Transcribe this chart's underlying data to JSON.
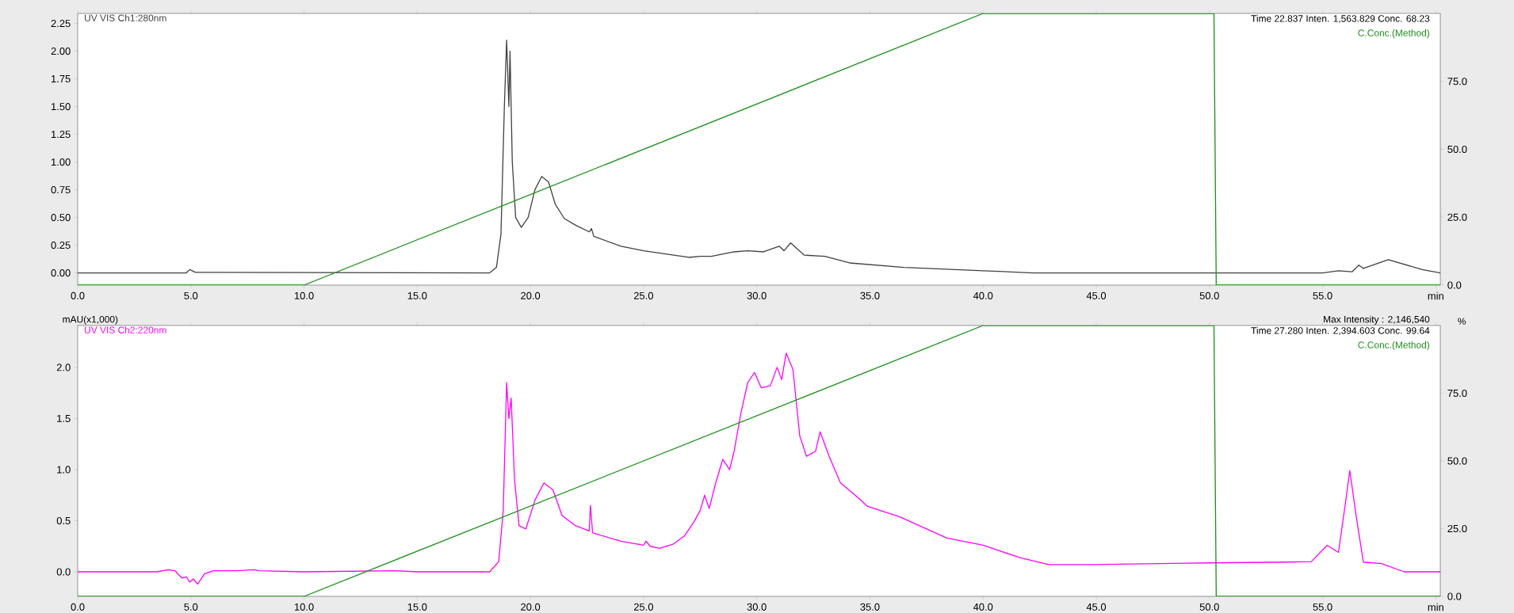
{
  "chart_data": [
    {
      "type": "line",
      "xlim": [
        0,
        60.2
      ],
      "ylim": [
        -0.11,
        2.34
      ],
      "y2lim": [
        0,
        100
      ],
      "xticks": [
        {
          "value": 0,
          "label": "0.0"
        },
        {
          "value": 5,
          "label": "5.0"
        },
        {
          "value": 10,
          "label": "10.0"
        },
        {
          "value": 15,
          "label": "15.0"
        },
        {
          "value": 20,
          "label": "20.0"
        },
        {
          "value": 25,
          "label": "25.0"
        },
        {
          "value": 30,
          "label": "30.0"
        },
        {
          "value": 35,
          "label": "35.0"
        },
        {
          "value": 40,
          "label": "40.0"
        },
        {
          "value": 45,
          "label": "45.0"
        },
        {
          "value": 50,
          "label": "50.0"
        },
        {
          "value": 55,
          "label": "55.0"
        },
        {
          "value": 60,
          "label": "min"
        }
      ],
      "yticks": [
        {
          "value": 0,
          "label": "0.00"
        },
        {
          "value": 0.25,
          "label": "0.25"
        },
        {
          "value": 0.5,
          "label": "0.50"
        },
        {
          "value": 0.75,
          "label": "0.75"
        },
        {
          "value": 1,
          "label": "1.00"
        },
        {
          "value": 1.25,
          "label": "1.25"
        },
        {
          "value": 1.5,
          "label": "1.50"
        },
        {
          "value": 1.75,
          "label": "1.75"
        },
        {
          "value": 2,
          "label": "2.00"
        },
        {
          "value": 2.25,
          "label": "2.25"
        }
      ],
      "y2ticks": [
        {
          "value": 0,
          "label": "0.0"
        },
        {
          "value": 25,
          "label": "25.0"
        },
        {
          "value": 50,
          "label": "50.0"
        },
        {
          "value": 75,
          "label": "75.0"
        }
      ],
      "annotations": [
        "Time 22.837 Inten. 1,563.829 Conc. 68.23"
      ],
      "series": [
        {
          "name": "UV VIS Ch1:280nm",
          "color": "#404040",
          "x": [
            0,
            4.8,
            4.95,
            5.2,
            18.2,
            18.5,
            18.7,
            18.85,
            18.95,
            19.05,
            19.1,
            19.2,
            19.35,
            19.6,
            19.9,
            20.2,
            20.5,
            20.8,
            21.1,
            21.5,
            22,
            22.6,
            22.7,
            22.8,
            24,
            25,
            26,
            27,
            27.5,
            28,
            29,
            29.6,
            30.3,
            31.0,
            31.2,
            31.5,
            32.1,
            33.0,
            34.1,
            36.5,
            40,
            42.2,
            55.0,
            55.7,
            56.3,
            56.6,
            56.8,
            57.9,
            59.4,
            60.2
          ],
          "values": [
            0,
            0,
            0.03,
            0.005,
            0,
            0.05,
            0.35,
            1.5,
            2.1,
            1.5,
            2.0,
            1.0,
            0.5,
            0.41,
            0.5,
            0.75,
            0.87,
            0.82,
            0.62,
            0.49,
            0.43,
            0.37,
            0.4,
            0.33,
            0.24,
            0.2,
            0.17,
            0.14,
            0.15,
            0.15,
            0.19,
            0.2,
            0.19,
            0.24,
            0.2,
            0.27,
            0.16,
            0.15,
            0.09,
            0.05,
            0.02,
            0.0,
            0.0,
            0.02,
            0.01,
            0.07,
            0.04,
            0.12,
            0.03,
            0.0
          ]
        },
        {
          "name": "C.Conc.(Method)",
          "color": "#1a8f1a",
          "axis": "y2",
          "x": [
            0,
            10,
            40,
            50.2,
            50.3,
            60.2
          ],
          "values": [
            0,
            0,
            100,
            100,
            0,
            0
          ]
        }
      ]
    },
    {
      "type": "line",
      "xlim": [
        0,
        60.2
      ],
      "ylim": [
        -0.24,
        2.41
      ],
      "y2lim": [
        0,
        100
      ],
      "xticks": [
        {
          "value": 0,
          "label": "0.0"
        },
        {
          "value": 5,
          "label": "5.0"
        },
        {
          "value": 10,
          "label": "10.0"
        },
        {
          "value": 15,
          "label": "15.0"
        },
        {
          "value": 20,
          "label": "20.0"
        },
        {
          "value": 25,
          "label": "25.0"
        },
        {
          "value": 30,
          "label": "30.0"
        },
        {
          "value": 35,
          "label": "35.0"
        },
        {
          "value": 40,
          "label": "40.0"
        },
        {
          "value": 45,
          "label": "45.0"
        },
        {
          "value": 50,
          "label": "50.0"
        },
        {
          "value": 55,
          "label": "55.0"
        },
        {
          "value": 60,
          "label": "min"
        }
      ],
      "yticks": [
        {
          "value": 0,
          "label": "0.0"
        },
        {
          "value": 0.5,
          "label": "0.5"
        },
        {
          "value": 1,
          "label": "1.0"
        },
        {
          "value": 1.5,
          "label": "1.5"
        },
        {
          "value": 2,
          "label": "2.0"
        }
      ],
      "y2ticks": [
        {
          "value": 0,
          "label": "0.0"
        },
        {
          "value": 25,
          "label": "25.0"
        },
        {
          "value": 50,
          "label": "50.0"
        },
        {
          "value": 75,
          "label": "75.0"
        }
      ],
      "ylabel": "mAU(x1,000)",
      "y2label": "%",
      "annotations": [
        "Time 27.280 Inten. 2,394.603 Conc. 99.64",
        "Max Intensity : 2,146,540"
      ],
      "series": [
        {
          "name": "UV VIS Ch2:220nm",
          "color": "#ff00ff",
          "x": [
            0,
            3.5,
            4,
            4.3,
            4.6,
            4.8,
            4.95,
            5.1,
            5.3,
            5.6,
            6,
            7,
            7.8,
            8,
            10,
            14,
            15,
            18.2,
            18.6,
            18.8,
            18.95,
            19.05,
            19.15,
            19.3,
            19.5,
            19.8,
            20.2,
            20.6,
            21,
            21.4,
            22,
            22.6,
            22.65,
            22.75,
            24,
            25,
            25.1,
            25.3,
            25.7,
            26.3,
            26.8,
            27.2,
            27.5,
            27.7,
            27.9,
            28.2,
            28.5,
            28.8,
            29,
            29.3,
            29.6,
            29.9,
            30.2,
            30.6,
            30.9,
            31.1,
            31.3,
            31.6,
            31.9,
            32.2,
            32.6,
            32.8,
            33.2,
            33.7,
            34.3,
            34.9,
            36.3,
            38.4,
            40,
            41.6,
            42.9,
            44.8,
            49,
            53.3,
            54.5,
            55.2,
            55.7,
            56.0,
            56.2,
            56.5,
            56.8,
            57.6,
            58.6,
            60.2
          ],
          "values": [
            0,
            0,
            0.02,
            0.01,
            -0.06,
            -0.05,
            -0.1,
            -0.07,
            -0.12,
            -0.02,
            0.01,
            0.01,
            0.02,
            0.01,
            0,
            0.01,
            0,
            0,
            0.1,
            0.6,
            1.85,
            1.5,
            1.7,
            0.9,
            0.45,
            0.42,
            0.7,
            0.87,
            0.8,
            0.55,
            0.45,
            0.4,
            0.65,
            0.38,
            0.3,
            0.26,
            0.3,
            0.25,
            0.23,
            0.27,
            0.35,
            0.48,
            0.6,
            0.75,
            0.62,
            0.88,
            1.1,
            1.0,
            1.18,
            1.55,
            1.85,
            1.95,
            1.8,
            1.82,
            2.0,
            1.88,
            2.14,
            1.98,
            1.33,
            1.13,
            1.18,
            1.37,
            1.13,
            0.87,
            0.76,
            0.64,
            0.54,
            0.33,
            0.26,
            0.14,
            0.07,
            0.07,
            0.085,
            0.095,
            0.1,
            0.26,
            0.19,
            0.66,
            0.99,
            0.52,
            0.095,
            0.08,
            0.0,
            0.0
          ]
        },
        {
          "name": "C.Conc.(Method)",
          "color": "#1a8f1a",
          "axis": "y2",
          "x": [
            0,
            10,
            40,
            50.2,
            50.3,
            60.2
          ],
          "values": [
            0,
            0,
            100,
            100,
            0,
            0
          ]
        }
      ]
    }
  ]
}
